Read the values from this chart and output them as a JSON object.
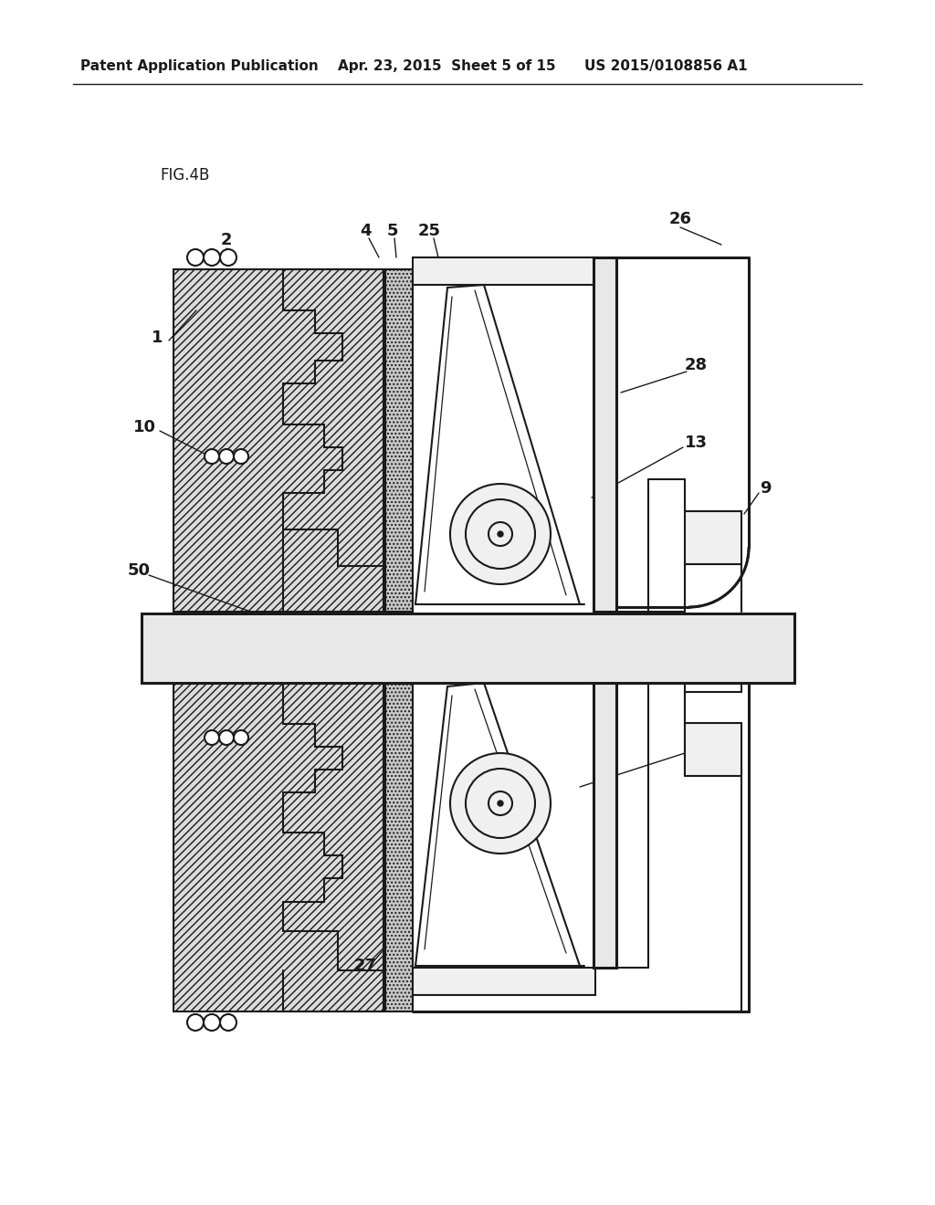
{
  "bg_color": "#ffffff",
  "line_color": "#1a1a1a",
  "header_left": "Patent Application Publication",
  "header_mid": "Apr. 23, 2015  Sheet 5 of 15",
  "header_right": "US 2015/0108856 A1",
  "fig_label": "FIG.4B"
}
